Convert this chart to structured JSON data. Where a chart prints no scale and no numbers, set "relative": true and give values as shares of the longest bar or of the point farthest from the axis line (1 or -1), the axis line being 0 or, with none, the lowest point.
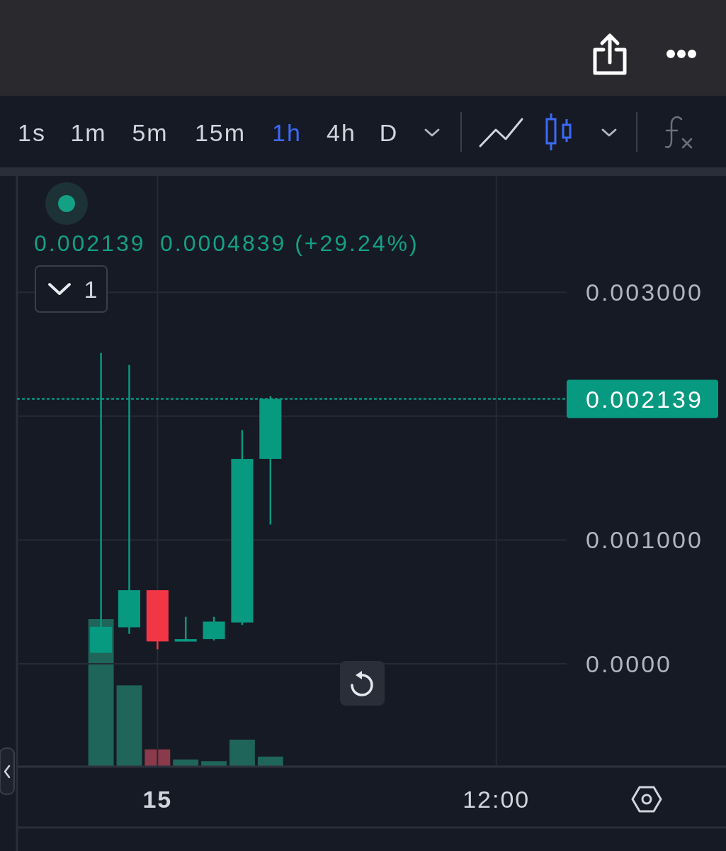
{
  "chart_data": [
    {
      "type": "candlestick",
      "categories": [
        null,
        null,
        "15",
        null,
        null,
        null,
        null,
        null,
        null,
        null,
        null,
        null,
        null,
        null,
        "12:00"
      ],
      "ohlc": [
        [
          8.9e-05,
          0.00251,
          8.9e-05,
          0.000299
        ],
        [
          0.000295,
          0.002412,
          0.000242,
          0.000595
        ],
        [
          0.000595,
          0.000595,
          0.000118,
          0.000181
        ],
        [
          0.00018,
          0.00038,
          0.00018,
          0.0002
        ],
        [
          0.0002,
          0.00038,
          0.000188,
          0.000341
        ],
        [
          0.000334,
          0.001887,
          0.000314,
          0.001655
        ],
        [
          0.001655,
          0.00216,
          0.001125,
          0.002139
        ],
        null,
        null,
        null,
        null,
        null,
        null,
        null,
        null
      ],
      "colors": [
        "#089981",
        "#089981",
        "#f23645",
        "#089981",
        "#089981",
        "#089981",
        "#089981",
        null,
        null,
        null,
        null,
        null,
        null,
        null,
        null
      ],
      "ylim": [
        -0.00083,
        0.00394
      ],
      "yticks": [
        {
          "value": 0,
          "label": "0.0000"
        },
        {
          "value": 0.001,
          "label": "0.001000"
        },
        {
          "value": 0.002,
          "label": null
        },
        {
          "value": 0.003,
          "label": "0.003000"
        }
      ],
      "grid": true,
      "ref_lines": [
        {
          "axis": "y",
          "value": 0.002139,
          "label": "0.002139",
          "color": "#089981",
          "line_style": "dotted"
        }
      ],
      "annotations": [
        "1s",
        "1m",
        "5m",
        "15m",
        "1h",
        "4h",
        "D",
        "0.002139",
        "0.0004839 (+29.24%)",
        "1"
      ]
    },
    {
      "type": "bar",
      "categories": [
        null,
        null,
        null,
        null,
        null,
        null,
        null,
        null,
        null,
        null,
        null,
        null,
        null,
        null,
        null
      ],
      "values": [
        1,
        0.551,
        0.117,
        0.048,
        0.037,
        0.183,
        0.068,
        null,
        null,
        null,
        null,
        null,
        null,
        null,
        null
      ],
      "colors": [
        "#1f655a",
        "#1f655a",
        "#8b3a4b",
        "#1f655a",
        "#1f655a",
        "#1f655a",
        "#1f655a",
        null,
        null,
        null,
        null,
        null,
        null,
        null,
        null
      ],
      "relative": true
    }
  ]
}
